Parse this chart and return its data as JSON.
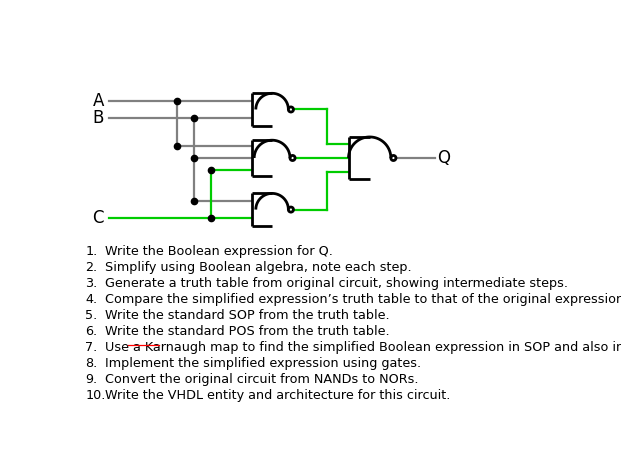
{
  "background_color": "#ffffff",
  "gray_wire": "#808080",
  "green_wire": "#00cc00",
  "items": [
    "Write the Boolean expression for Q.",
    "Simplify using Boolean algebra, note each step.",
    "Generate a truth table from original circuit, showing intermediate steps.",
    "Compare the simplified expression’s truth table to that of the original expression.",
    "Write the standard SOP from the truth table.",
    "Write the standard POS from the truth table.",
    "Use a Karnaugh map to find the simplified Boolean expression in SOP and also in POS form.",
    "Implement the simplified expression using gates.",
    "Convert the original circuit from NANDs to NORs.",
    "Write the VHDL entity and architecture for this circuit."
  ],
  "karnaugh_index": 6,
  "karnaugh_pre": "Use a ",
  "karnaugh_word": "Karnaugh",
  "karnaugh_post": " map to find the simplified Boolean expression in SOP and also in POS form.",
  "figsize": [
    6.21,
    4.76
  ],
  "dpi": 100
}
